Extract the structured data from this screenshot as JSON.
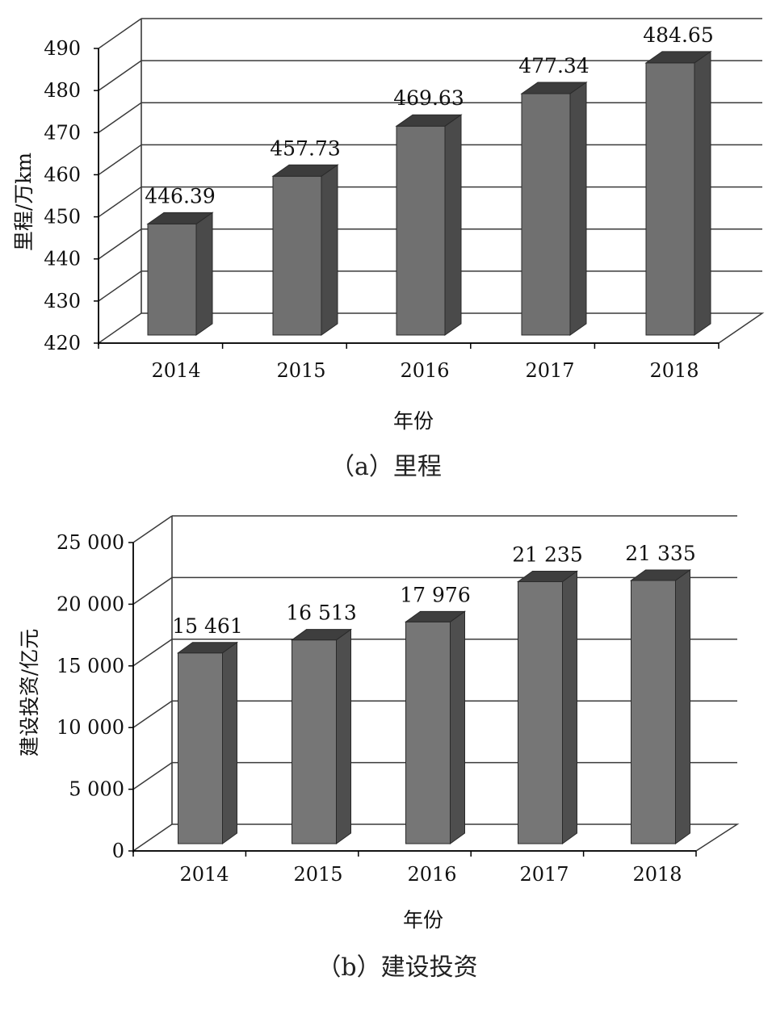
{
  "chart_data": [
    {
      "type": "bar",
      "style": "3d-column",
      "categories": [
        "2014",
        "2015",
        "2016",
        "2017",
        "2018"
      ],
      "values": [
        446.39,
        457.73,
        469.63,
        477.34,
        484.65
      ],
      "data_labels": [
        "446.39",
        "457.73",
        "469.63",
        "477.34",
        "484.65"
      ],
      "ylim": [
        420,
        490
      ],
      "yticks": [
        420,
        430,
        440,
        450,
        460,
        470,
        480,
        490
      ],
      "ytick_labels": [
        "420",
        "430",
        "440",
        "450",
        "460",
        "470",
        "480",
        "490"
      ],
      "xlabel": "年份",
      "ylabel": "里程/万km",
      "caption": "（a）里程",
      "grid": true,
      "colors": {
        "bar_front": "#707070",
        "bar_side": "#4a4a4a",
        "bar_top": "#3c3c3c",
        "grid": "#3a3a3a"
      }
    },
    {
      "type": "bar",
      "style": "3d-column",
      "categories": [
        "2014",
        "2015",
        "2016",
        "2017",
        "2018"
      ],
      "values": [
        15461,
        16513,
        17976,
        21235,
        21335
      ],
      "data_labels": [
        "15 461",
        "16 513",
        "17 976",
        "21 235",
        "21 335"
      ],
      "ylim": [
        0,
        25000
      ],
      "yticks": [
        0,
        5000,
        10000,
        15000,
        20000,
        25000
      ],
      "ytick_labels": [
        "0",
        "5 000",
        "10 000",
        "15 000",
        "20 000",
        "25 000"
      ],
      "xlabel": "年份",
      "ylabel": "建设投资/亿元",
      "caption": "（b）建设投资",
      "grid": true,
      "colors": {
        "bar_front": "#767676",
        "bar_side": "#4e4e4e",
        "bar_top": "#3e3e3e",
        "grid": "#3a3a3a"
      }
    }
  ]
}
